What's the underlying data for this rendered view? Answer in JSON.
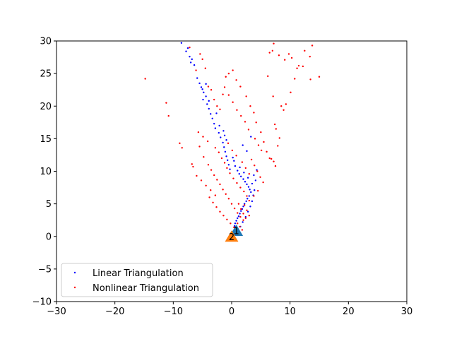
{
  "chart_data": {
    "type": "scatter",
    "title": "",
    "xlabel": "",
    "ylabel": "",
    "xlim": [
      -30,
      30
    ],
    "ylim": [
      -10,
      30
    ],
    "xticks": [
      -30,
      -20,
      -10,
      0,
      10,
      20,
      30
    ],
    "yticks": [
      -10,
      -5,
      0,
      5,
      10,
      15,
      20,
      25,
      30
    ],
    "xtick_labels": [
      "−30",
      "−20",
      "−10",
      "0",
      "10",
      "20",
      "30"
    ],
    "ytick_labels": [
      "−10",
      "−5",
      "0",
      "5",
      "10",
      "15",
      "20",
      "25",
      "30"
    ],
    "grid": false,
    "legend_position": "lower-left",
    "series": [
      {
        "name": "Linear Triangulation",
        "color": "#0000ff",
        "marker": "dot",
        "points": [
          [
            -8.6,
            29.7
          ],
          [
            -7.8,
            28.4
          ],
          [
            -7.2,
            27.6
          ],
          [
            -7.0,
            26.7
          ],
          [
            -6.4,
            26.3
          ],
          [
            -6.8,
            27.2
          ],
          [
            -7.5,
            28.9
          ],
          [
            -5.9,
            24.3
          ],
          [
            -5.5,
            23.5
          ],
          [
            -5.2,
            22.9
          ],
          [
            -4.8,
            22.1
          ],
          [
            -4.4,
            21.5
          ],
          [
            -4.9,
            21.0
          ],
          [
            -4.2,
            20.3
          ],
          [
            -3.9,
            19.6
          ],
          [
            -3.6,
            18.8
          ],
          [
            -3.3,
            18.1
          ],
          [
            -3.0,
            17.3
          ],
          [
            -2.8,
            16.6
          ],
          [
            -2.2,
            15.9
          ],
          [
            -1.9,
            15.2
          ],
          [
            -1.5,
            14.4
          ],
          [
            -1.3,
            13.7
          ],
          [
            -1.1,
            13.0
          ],
          [
            -0.9,
            12.3
          ],
          [
            -0.7,
            11.7
          ],
          [
            -0.5,
            11.0
          ],
          [
            -0.3,
            10.3
          ],
          [
            -1.2,
            15.5
          ],
          [
            -1.4,
            16.2
          ],
          [
            -2.1,
            17.0
          ],
          [
            -0.9,
            14.8
          ],
          [
            0.2,
            12.1
          ],
          [
            0.4,
            11.6
          ],
          [
            0.6,
            10.8
          ],
          [
            1.0,
            10.1
          ],
          [
            1.3,
            9.6
          ],
          [
            1.6,
            9.2
          ],
          [
            2.0,
            8.8
          ],
          [
            2.3,
            8.4
          ],
          [
            2.6,
            8.0
          ],
          [
            2.9,
            7.6
          ],
          [
            3.1,
            7.2
          ],
          [
            3.3,
            6.8
          ],
          [
            3.0,
            6.2
          ],
          [
            2.7,
            5.8
          ],
          [
            2.5,
            5.4
          ],
          [
            2.2,
            5.0
          ],
          [
            2.0,
            4.6
          ],
          [
            1.8,
            4.2
          ],
          [
            1.6,
            3.9
          ],
          [
            1.4,
            3.5
          ],
          [
            1.2,
            3.1
          ],
          [
            1.0,
            2.8
          ],
          [
            0.8,
            2.4
          ],
          [
            0.6,
            2.0
          ],
          [
            0.5,
            1.6
          ],
          [
            0.7,
            1.2
          ],
          [
            1.1,
            1.0
          ],
          [
            1.5,
            1.5
          ],
          [
            1.9,
            2.2
          ],
          [
            2.4,
            3.0
          ],
          [
            2.8,
            3.8
          ],
          [
            3.2,
            4.6
          ],
          [
            3.5,
            5.4
          ],
          [
            3.7,
            6.3
          ],
          [
            3.9,
            7.1
          ],
          [
            3.5,
            8.1
          ],
          [
            2.8,
            9.0
          ],
          [
            2.1,
            9.8
          ],
          [
            1.4,
            10.6
          ],
          [
            3.3,
            15.3
          ],
          [
            2.6,
            13.1
          ],
          [
            1.9,
            14.0
          ],
          [
            4.1,
            8.6
          ],
          [
            3.8,
            9.4
          ],
          [
            4.3,
            10.2
          ],
          [
            -4.4,
            23.4
          ],
          [
            -5.0,
            22.6
          ],
          [
            -3.9,
            20.8
          ],
          [
            -2.6,
            18.9
          ]
        ]
      },
      {
        "name": "Nonlinear Triangulation",
        "color": "#ff0000",
        "marker": "dot",
        "points": [
          [
            -14.8,
            24.2
          ],
          [
            -11.2,
            20.5
          ],
          [
            -10.8,
            18.5
          ],
          [
            -8.9,
            14.3
          ],
          [
            -8.5,
            13.6
          ],
          [
            -6.8,
            11.1
          ],
          [
            -6.6,
            10.7
          ],
          [
            -7.2,
            29.0
          ],
          [
            -6.1,
            25.5
          ],
          [
            -5.4,
            28.0
          ],
          [
            -5.0,
            27.2
          ],
          [
            -4.5,
            25.8
          ],
          [
            -4.0,
            23.0
          ],
          [
            -3.5,
            22.5
          ],
          [
            -3.0,
            21.0
          ],
          [
            -2.5,
            20.0
          ],
          [
            -2.0,
            19.5
          ],
          [
            -1.5,
            21.8
          ],
          [
            -1.0,
            24.5
          ],
          [
            -0.5,
            25.0
          ],
          [
            0.2,
            25.5
          ],
          [
            0.8,
            24.0
          ],
          [
            1.5,
            23.0
          ],
          [
            2.5,
            21.5
          ],
          [
            3.2,
            20.0
          ],
          [
            3.8,
            19.0
          ],
          [
            4.2,
            17.5
          ],
          [
            5.0,
            16.0
          ],
          [
            5.5,
            14.5
          ],
          [
            6.0,
            13.0
          ],
          [
            6.5,
            12.0
          ],
          [
            7.2,
            11.5
          ],
          [
            7.5,
            10.8
          ],
          [
            6.2,
            24.6
          ],
          [
            6.5,
            28.2
          ],
          [
            7.0,
            28.5
          ],
          [
            7.2,
            29.6
          ],
          [
            8.1,
            27.8
          ],
          [
            9.1,
            27.1
          ],
          [
            9.8,
            28.0
          ],
          [
            10.3,
            27.4
          ],
          [
            11.2,
            25.8
          ],
          [
            12.5,
            28.5
          ],
          [
            13.4,
            27.6
          ],
          [
            13.8,
            29.3
          ],
          [
            13.5,
            24.1
          ],
          [
            15.0,
            24.5
          ],
          [
            10.8,
            24.2
          ],
          [
            11.5,
            26.2
          ],
          [
            12.2,
            26.1
          ],
          [
            7.1,
            21.5
          ],
          [
            8.5,
            20.0
          ],
          [
            9.3,
            20.3
          ],
          [
            10.1,
            22.1
          ],
          [
            8.9,
            19.4
          ],
          [
            7.4,
            17.2
          ],
          [
            7.6,
            16.5
          ],
          [
            8.2,
            15.1
          ],
          [
            7.9,
            13.9
          ],
          [
            6.8,
            11.9
          ],
          [
            -5.5,
            13.8
          ],
          [
            -4.8,
            12.2
          ],
          [
            -4.0,
            11.0
          ],
          [
            -3.5,
            10.2
          ],
          [
            -3.0,
            9.4
          ],
          [
            -2.5,
            8.7
          ],
          [
            -2.0,
            8.0
          ],
          [
            -1.5,
            7.2
          ],
          [
            -1.0,
            6.5
          ],
          [
            -0.5,
            5.8
          ],
          [
            0.0,
            5.0
          ],
          [
            0.5,
            4.3
          ],
          [
            1.0,
            3.6
          ],
          [
            1.5,
            3.0
          ],
          [
            2.0,
            2.5
          ],
          [
            -2.8,
            13.6
          ],
          [
            -2.2,
            12.9
          ],
          [
            -1.7,
            12.0
          ],
          [
            -1.2,
            11.3
          ],
          [
            -0.8,
            10.5
          ],
          [
            -0.3,
            9.7
          ],
          [
            0.3,
            8.9
          ],
          [
            0.9,
            8.2
          ],
          [
            1.5,
            7.5
          ],
          [
            2.1,
            6.9
          ],
          [
            2.6,
            6.2
          ],
          [
            3.0,
            5.5
          ],
          [
            1.2,
            5.0
          ],
          [
            1.6,
            4.2
          ],
          [
            2.0,
            3.5
          ],
          [
            2.4,
            2.8
          ],
          [
            1.0,
            2.0
          ],
          [
            1.4,
            1.5
          ],
          [
            1.8,
            1.0
          ],
          [
            2.2,
            4.8
          ],
          [
            2.6,
            4.0
          ],
          [
            3.0,
            3.2
          ],
          [
            -3.8,
            6.0
          ],
          [
            -3.2,
            5.2
          ],
          [
            -2.6,
            4.5
          ],
          [
            -2.0,
            3.8
          ],
          [
            -1.4,
            3.2
          ],
          [
            -0.8,
            2.6
          ],
          [
            -0.2,
            2.0
          ],
          [
            0.4,
            1.4
          ],
          [
            3.4,
            11.8
          ],
          [
            3.9,
            10.9
          ],
          [
            4.4,
            10.0
          ],
          [
            4.9,
            9.1
          ],
          [
            5.4,
            8.3
          ],
          [
            4.5,
            7.0
          ],
          [
            3.8,
            6.2
          ],
          [
            4.0,
            15.0
          ],
          [
            4.6,
            14.0
          ],
          [
            5.1,
            13.2
          ],
          [
            2.9,
            16.4
          ],
          [
            2.3,
            17.6
          ],
          [
            1.6,
            18.5
          ],
          [
            0.9,
            19.4
          ],
          [
            0.2,
            20.6
          ],
          [
            -0.5,
            21.7
          ],
          [
            -1.2,
            22.9
          ],
          [
            -6.0,
            9.3
          ],
          [
            -5.2,
            8.6
          ],
          [
            -4.4,
            7.8
          ],
          [
            -3.6,
            7.1
          ],
          [
            -2.8,
            6.3
          ],
          [
            1.8,
            11.4
          ],
          [
            2.4,
            10.5
          ],
          [
            3.0,
            9.6
          ],
          [
            -0.6,
            14.3
          ],
          [
            0.1,
            13.2
          ],
          [
            0.8,
            12.4
          ],
          [
            -5.7,
            16.0
          ],
          [
            -4.9,
            15.3
          ],
          [
            -4.1,
            14.6
          ]
        ]
      }
    ],
    "camera_markers": [
      {
        "label": "1",
        "color": "#1f77b4",
        "x": 0.8,
        "y": 0.9
      },
      {
        "label": "2",
        "color": "#ff7f0e",
        "x": 0.0,
        "y": 0.0
      }
    ]
  }
}
